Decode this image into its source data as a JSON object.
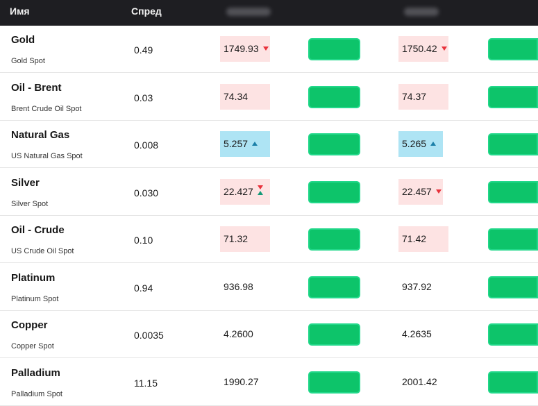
{
  "header": {
    "name_label": "Имя",
    "spread_label": "Спред"
  },
  "colors": {
    "header_bg": "#1e1e22",
    "down_bg": "#fde3e3",
    "up_bg": "#aee4f4",
    "trade_button": "#0dc46a",
    "down_arrow": "#e8323c",
    "up_arrow": "#1a7fa8"
  },
  "rows": [
    {
      "name": "Gold",
      "subtitle": "Gold Spot",
      "spread": "0.49",
      "sell": "1749.93",
      "sell_state": "down",
      "buy": "1750.42",
      "buy_state": "down"
    },
    {
      "name": "Oil - Brent",
      "subtitle": "Brent Crude Oil Spot",
      "spread": "0.03",
      "sell": "74.34",
      "sell_state": "flat-down",
      "buy": "74.37",
      "buy_state": "flat-down"
    },
    {
      "name": "Natural Gas",
      "subtitle": "US Natural Gas Spot",
      "spread": "0.008",
      "sell": "5.257",
      "sell_state": "up",
      "buy": "5.265",
      "buy_state": "up"
    },
    {
      "name": "Silver",
      "subtitle": "Silver Spot",
      "spread": "0.030",
      "sell": "22.427",
      "sell_state": "mixed",
      "buy": "22.457",
      "buy_state": "down"
    },
    {
      "name": "Oil - Crude",
      "subtitle": "US Crude Oil Spot",
      "spread": "0.10",
      "sell": "71.32",
      "sell_state": "flat-down",
      "buy": "71.42",
      "buy_state": "flat-down"
    },
    {
      "name": "Platinum",
      "subtitle": "Platinum Spot",
      "spread": "0.94",
      "sell": "936.98",
      "sell_state": "none",
      "buy": "937.92",
      "buy_state": "none"
    },
    {
      "name": "Copper",
      "subtitle": "Copper Spot",
      "spread": "0.0035",
      "sell": "4.2600",
      "sell_state": "none",
      "buy": "4.2635",
      "buy_state": "none"
    },
    {
      "name": "Palladium",
      "subtitle": "Palladium Spot",
      "spread": "11.15",
      "sell": "1990.27",
      "sell_state": "none",
      "buy": "2001.42",
      "buy_state": "none"
    }
  ]
}
